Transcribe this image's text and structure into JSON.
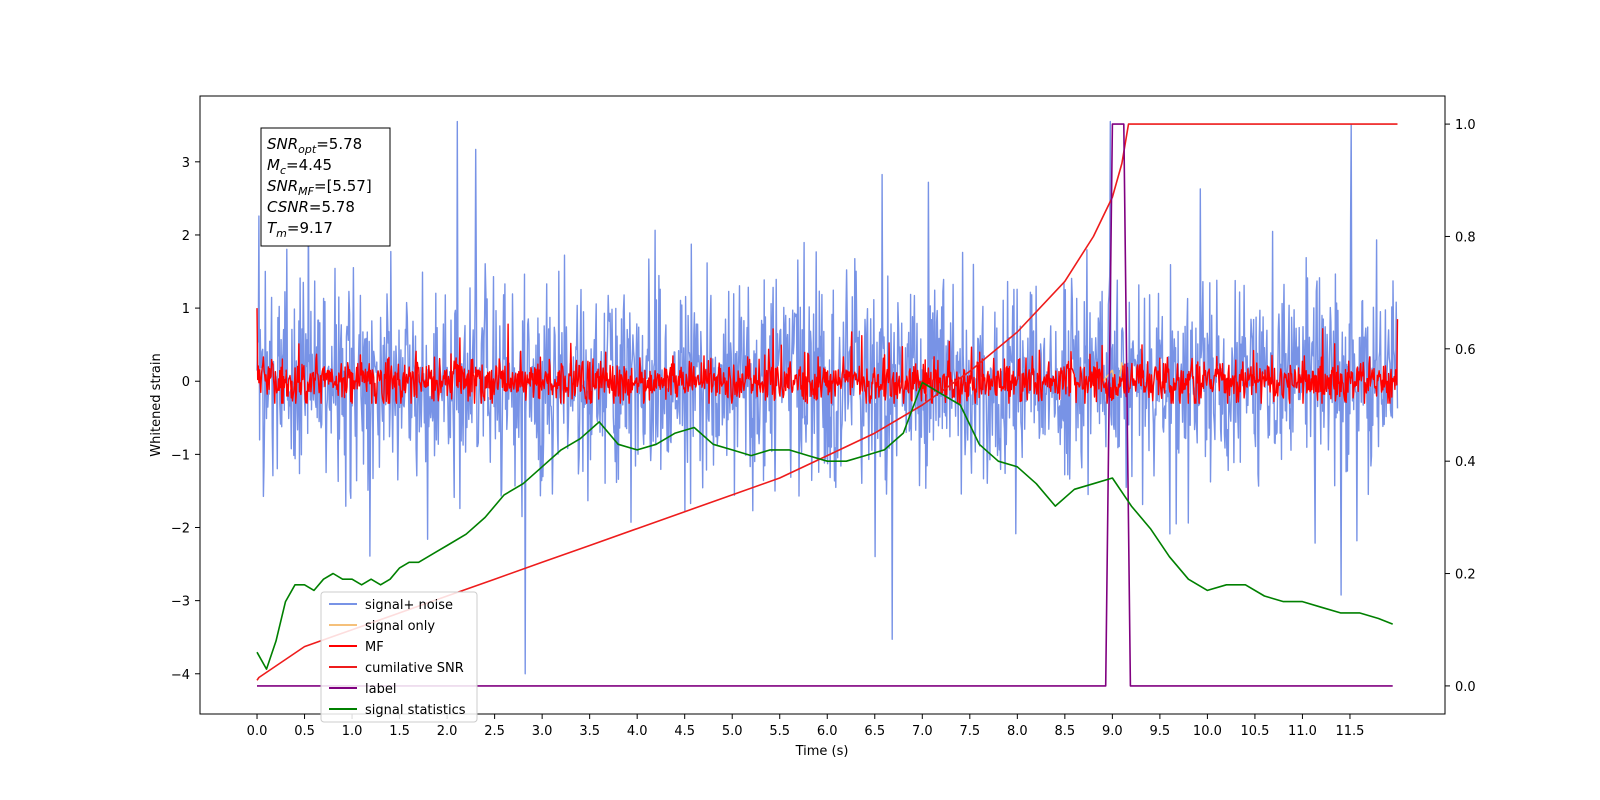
{
  "chart_data": {
    "type": "line",
    "xlabel": "Time (s)",
    "ylabel": "Whitened strain",
    "xlim": [
      -0.6,
      12.5
    ],
    "ylim": [
      -4.55,
      3.9
    ],
    "y2lim": [
      -0.05,
      1.05
    ],
    "x_ticks": [
      0.0,
      0.5,
      1.0,
      1.5,
      2.0,
      2.5,
      3.0,
      3.5,
      4.0,
      4.5,
      5.0,
      5.5,
      6.0,
      6.5,
      7.0,
      7.5,
      8.0,
      8.5,
      9.0,
      9.5,
      10.0,
      10.5,
      11.0,
      11.5
    ],
    "x_tick_labels": [
      "0.0",
      "0.5",
      "1.0",
      "1.5",
      "2.0",
      "2.5",
      "3.0",
      "3.5",
      "4.0",
      "4.5",
      "5.0",
      "5.5",
      "6.0",
      "6.5",
      "7.0",
      "7.5",
      "8.0",
      "8.5",
      "9.0",
      "9.5",
      "10.0",
      "10.5",
      "11.0",
      "11.5"
    ],
    "y_ticks": [
      -4,
      -3,
      -2,
      -1,
      0,
      1,
      2,
      3
    ],
    "y_tick_labels": [
      "−4",
      "−3",
      "−2",
      "−1",
      "0",
      "1",
      "2",
      "3"
    ],
    "y2_ticks": [
      0.0,
      0.2,
      0.4,
      0.6,
      0.8,
      1.0
    ],
    "y2_tick_labels": [
      "0.0",
      "0.2",
      "0.4",
      "0.6",
      "0.8",
      "1.0"
    ],
    "grid": false,
    "legend_position": "lower-left",
    "annotation": {
      "lines": [
        {
          "sym": "SNR",
          "sub": "opt",
          "value": "=5.78"
        },
        {
          "sym": "M",
          "sub": "c",
          "value": "=4.45"
        },
        {
          "sym": "SNR",
          "sub": "MF",
          "value": "=[5.57]"
        },
        {
          "sym": "CSNR",
          "sub": "",
          "value": "=5.78"
        },
        {
          "sym": "T",
          "sub": "m",
          "value": "=9.17"
        }
      ]
    },
    "series": [
      {
        "name": "signal+ noise",
        "color": "#7893e6",
        "axis": "left",
        "kind": "noise",
        "x_range": [
          0.0,
          12.0
        ],
        "mean": 0.0,
        "band": 1.25,
        "y_max": 3.55,
        "y_min": -4.0,
        "points": 1800
      },
      {
        "name": "signal only",
        "color": "#f5c07a",
        "axis": "left",
        "kind": "line",
        "x": [
          8.9,
          9.0,
          9.05,
          9.1,
          9.15
        ],
        "y": [
          0.0,
          0.15,
          -0.2,
          0.25,
          0.0
        ]
      },
      {
        "name": "MF",
        "color": "#ff0000",
        "axis": "left",
        "kind": "noise",
        "x_range": [
          0.0,
          12.0
        ],
        "mean": 0.0,
        "band": 0.28,
        "y_max": 0.78,
        "y_min": -0.3,
        "points": 1800,
        "start": 1.0,
        "end": 0.85
      },
      {
        "name": "cumilative SNR",
        "color": "#ee1c1c",
        "axis": "right",
        "kind": "line",
        "x": [
          0.0,
          0.02,
          0.5,
          1.0,
          1.5,
          2.0,
          2.5,
          3.0,
          3.5,
          4.0,
          4.5,
          5.0,
          5.5,
          6.0,
          6.5,
          7.0,
          7.5,
          8.0,
          8.5,
          8.8,
          9.0,
          9.1,
          9.17,
          12.0
        ],
        "y": [
          0.01,
          0.015,
          0.07,
          0.1,
          0.13,
          0.16,
          0.19,
          0.22,
          0.25,
          0.28,
          0.31,
          0.34,
          0.37,
          0.41,
          0.45,
          0.5,
          0.56,
          0.63,
          0.72,
          0.8,
          0.87,
          0.93,
          1.0,
          1.0
        ]
      },
      {
        "name": "label",
        "color": "#800080",
        "axis": "right",
        "kind": "line",
        "x": [
          0.0,
          8.93,
          9.0,
          9.12,
          9.19,
          11.95
        ],
        "y": [
          0.0,
          0.0,
          1.0,
          1.0,
          0.0,
          0.0
        ]
      },
      {
        "name": "signal statistics",
        "color": "#008000",
        "axis": "right",
        "kind": "line",
        "x": [
          0.0,
          0.1,
          0.2,
          0.3,
          0.4,
          0.5,
          0.6,
          0.7,
          0.8,
          0.9,
          1.0,
          1.1,
          1.2,
          1.3,
          1.4,
          1.5,
          1.6,
          1.7,
          1.8,
          1.9,
          2.0,
          2.2,
          2.4,
          2.6,
          2.8,
          3.0,
          3.2,
          3.4,
          3.6,
          3.8,
          4.0,
          4.2,
          4.4,
          4.6,
          4.8,
          5.0,
          5.2,
          5.4,
          5.6,
          5.8,
          6.0,
          6.2,
          6.4,
          6.6,
          6.8,
          7.0,
          7.2,
          7.4,
          7.6,
          7.8,
          8.0,
          8.2,
          8.4,
          8.6,
          8.8,
          9.0,
          9.2,
          9.4,
          9.6,
          9.8,
          10.0,
          10.2,
          10.4,
          10.6,
          10.8,
          11.0,
          11.2,
          11.4,
          11.6,
          11.8,
          11.95
        ],
        "y": [
          0.06,
          0.03,
          0.08,
          0.15,
          0.18,
          0.18,
          0.17,
          0.19,
          0.2,
          0.19,
          0.19,
          0.18,
          0.19,
          0.18,
          0.19,
          0.21,
          0.22,
          0.22,
          0.23,
          0.24,
          0.25,
          0.27,
          0.3,
          0.34,
          0.36,
          0.39,
          0.42,
          0.44,
          0.47,
          0.43,
          0.42,
          0.43,
          0.45,
          0.46,
          0.43,
          0.42,
          0.41,
          0.42,
          0.42,
          0.41,
          0.4,
          0.4,
          0.41,
          0.42,
          0.45,
          0.54,
          0.52,
          0.5,
          0.43,
          0.4,
          0.39,
          0.36,
          0.32,
          0.35,
          0.36,
          0.37,
          0.32,
          0.28,
          0.23,
          0.19,
          0.17,
          0.18,
          0.18,
          0.16,
          0.15,
          0.15,
          0.14,
          0.13,
          0.13,
          0.12,
          0.11
        ]
      }
    ]
  }
}
